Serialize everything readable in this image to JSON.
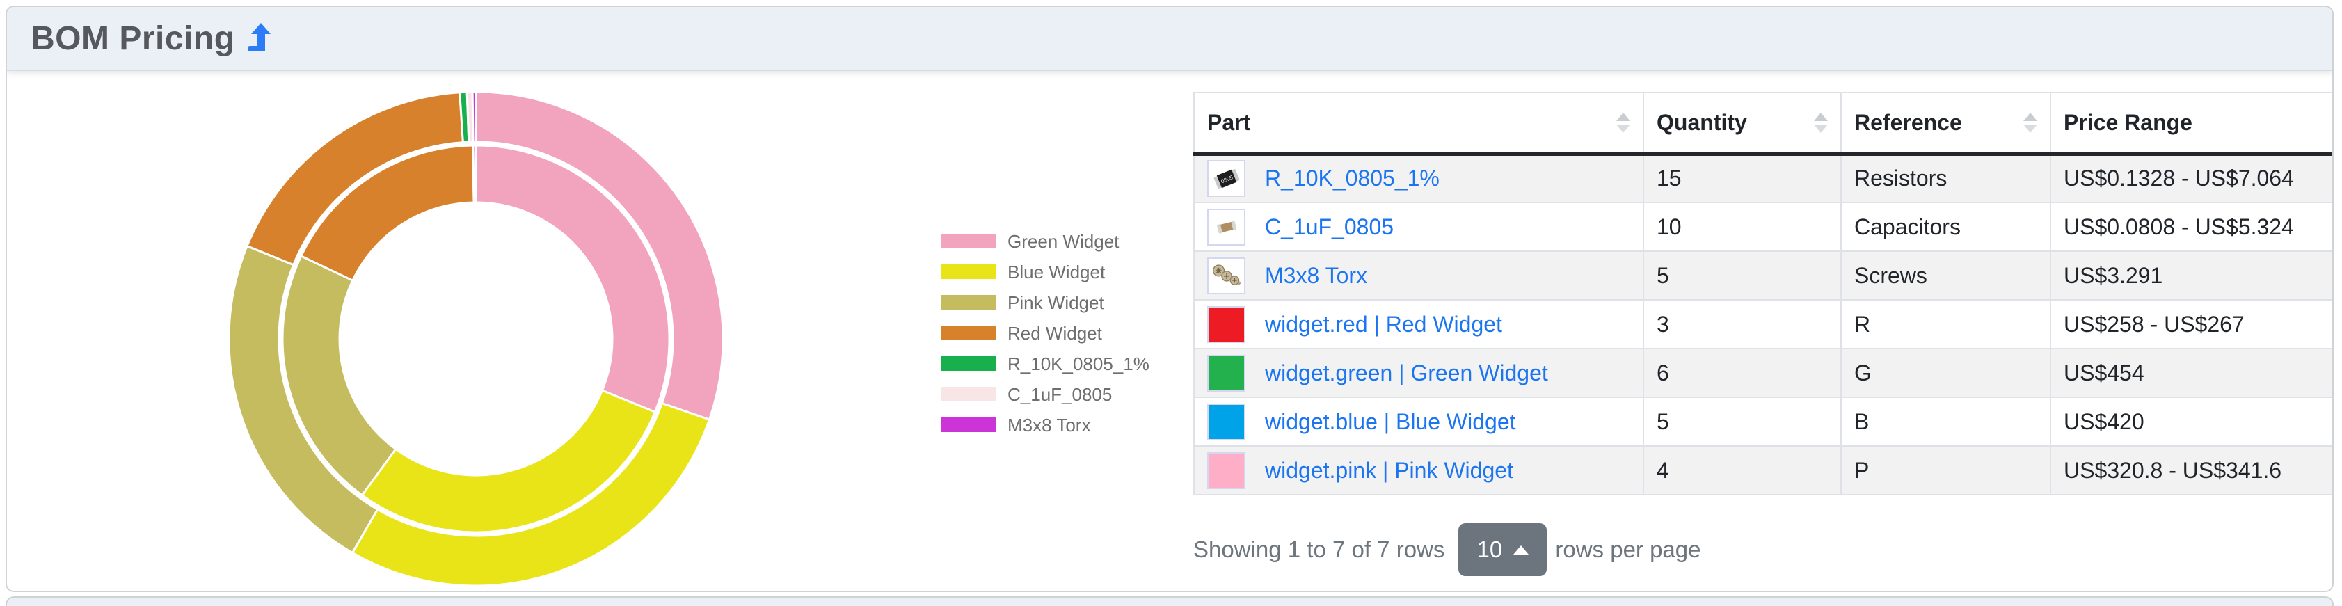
{
  "panel": {
    "title": "BOM Pricing",
    "title_icon": "arrow-turn-up-icon",
    "accent_color": "#2b7cf7"
  },
  "chart_data": {
    "type": "donut",
    "title": "",
    "rings": [
      {
        "name": "outer",
        "metric": "max_price"
      },
      {
        "name": "inner",
        "metric": "min_price"
      }
    ],
    "units": "USD",
    "legend_position": "right-center",
    "slices": [
      {
        "label": "Green Widget",
        "color": "#f2a3be",
        "min": 454,
        "max": 454
      },
      {
        "label": "Blue Widget",
        "color": "#e9e417",
        "min": 420,
        "max": 420
      },
      {
        "label": "Pink Widget",
        "color": "#c5bb5f",
        "min": 320.8,
        "max": 341.6
      },
      {
        "label": "Red Widget",
        "color": "#d8812c",
        "min": 258,
        "max": 267
      },
      {
        "label": "R_10K_0805_1%",
        "color": "#18b04d",
        "min": 0.1328,
        "max": 7.064
      },
      {
        "label": "C_1uF_0805",
        "color": "#f8e6e6",
        "min": 0.0808,
        "max": 5.324
      },
      {
        "label": "M3x8 Torx",
        "color": "#cb35d8",
        "min": 3.291,
        "max": 3.291
      }
    ]
  },
  "table": {
    "columns": [
      {
        "label": "Part",
        "sortable": true
      },
      {
        "label": "Quantity",
        "sortable": true
      },
      {
        "label": "Reference",
        "sortable": true
      },
      {
        "label": "Price Range",
        "sortable": false
      }
    ],
    "rows": [
      {
        "part": "R_10K_0805_1%",
        "thumb": "resistor-0805-photo",
        "swatch_color": "",
        "quantity": "15",
        "reference": "Resistors",
        "price_range": "US$0.1328 - US$7.064"
      },
      {
        "part": "C_1uF_0805",
        "thumb": "capacitor-0805-photo",
        "swatch_color": "",
        "quantity": "10",
        "reference": "Capacitors",
        "price_range": "US$0.0808 - US$5.324"
      },
      {
        "part": "M3x8 Torx",
        "thumb": "torx-screws-photo",
        "swatch_color": "",
        "quantity": "5",
        "reference": "Screws",
        "price_range": "US$3.291"
      },
      {
        "part": "widget.red | Red Widget",
        "thumb": "color-swatch",
        "swatch_color": "#ed1c24",
        "quantity": "3",
        "reference": "R",
        "price_range": "US$258 - US$267"
      },
      {
        "part": "widget.green | Green Widget",
        "thumb": "color-swatch",
        "swatch_color": "#22b14c",
        "quantity": "6",
        "reference": "G",
        "price_range": "US$454"
      },
      {
        "part": "widget.blue | Blue Widget",
        "thumb": "color-swatch",
        "swatch_color": "#00a2e8",
        "quantity": "5",
        "reference": "B",
        "price_range": "US$420"
      },
      {
        "part": "widget.pink | Pink Widget",
        "thumb": "color-swatch",
        "swatch_color": "#ffaec8",
        "quantity": "4",
        "reference": "P",
        "price_range": "US$320.8 - US$341.6"
      }
    ],
    "link_color": "#1c75f0"
  },
  "pagination": {
    "summary": "Showing 1 to 7 of 7 rows",
    "page_size": "10",
    "suffix": "rows per page",
    "button_color": "#6c757d"
  }
}
